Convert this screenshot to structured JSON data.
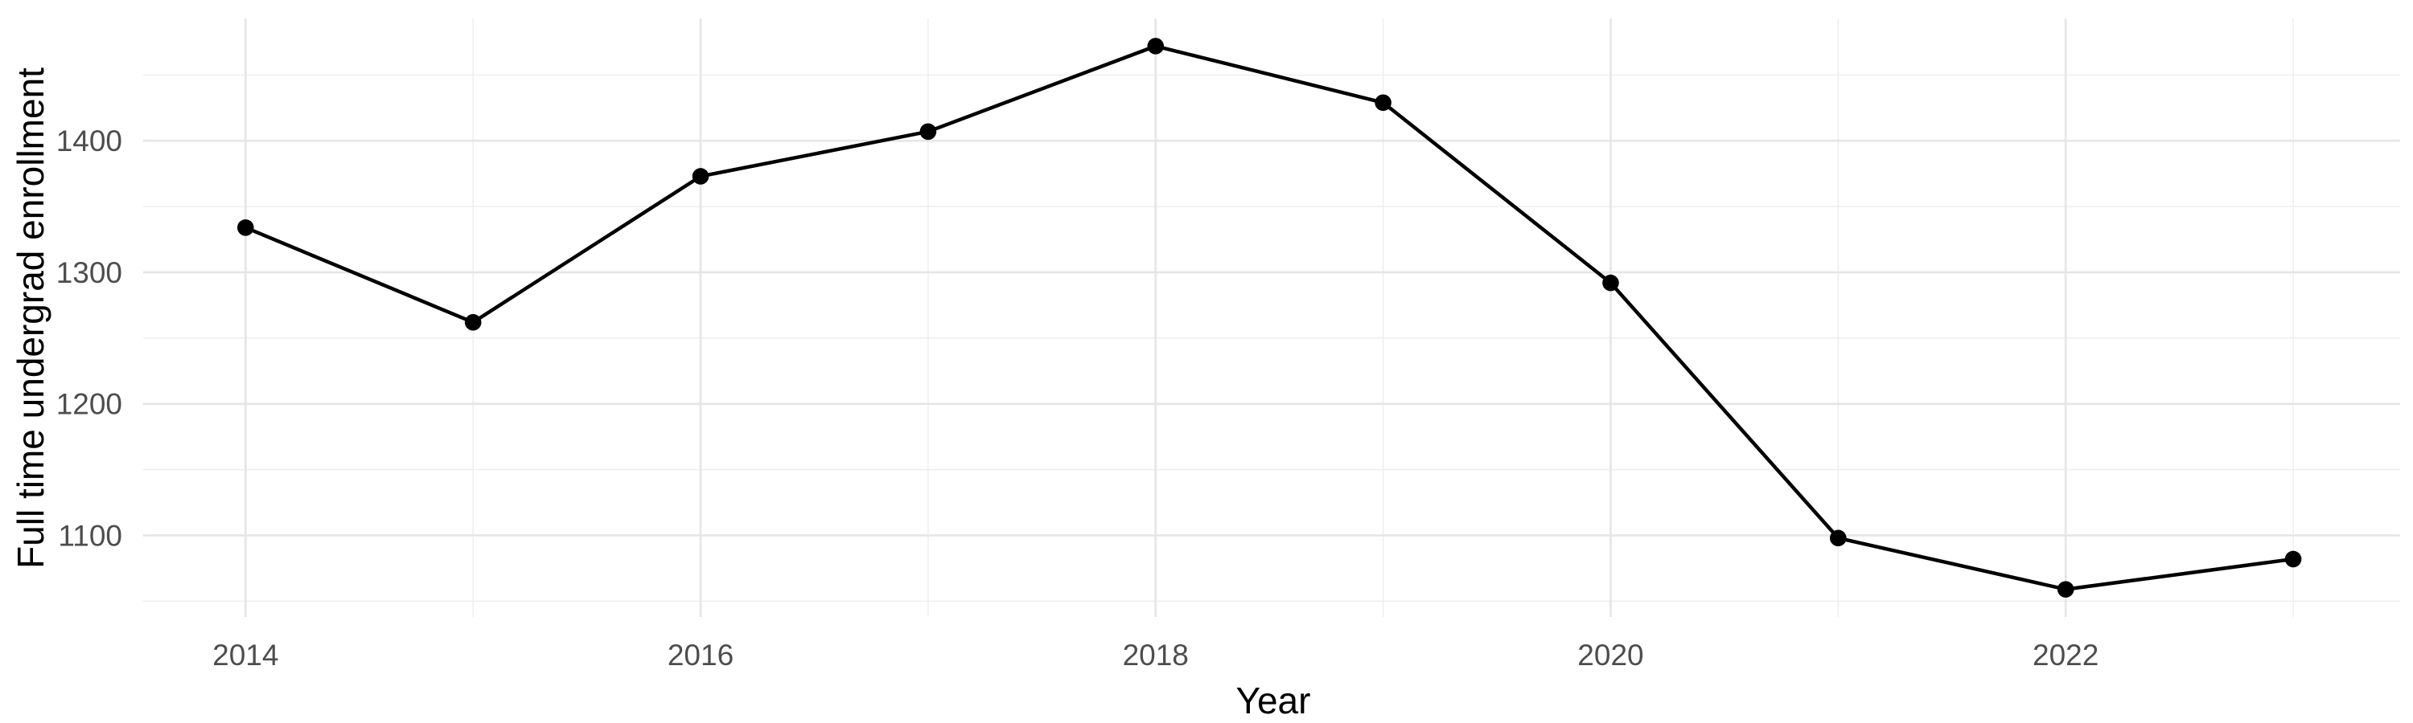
{
  "chart_data": {
    "type": "line",
    "title": "",
    "xlabel": "Year",
    "ylabel": "Full time undergrad enrollment",
    "x": [
      2014,
      2015,
      2016,
      2017,
      2018,
      2019,
      2020,
      2021,
      2022,
      2023
    ],
    "values": [
      1334,
      1262,
      1373,
      1407,
      1472,
      1429,
      1292,
      1098,
      1059,
      1082
    ],
    "x_major_ticks": [
      2014,
      2016,
      2018,
      2020,
      2022
    ],
    "x_major_tick_labels": [
      "2014",
      "2016",
      "2018",
      "2020",
      "2022"
    ],
    "x_minor_ticks": [
      2015,
      2017,
      2019,
      2021,
      2023
    ],
    "y_major_ticks": [
      1100,
      1200,
      1300,
      1400
    ],
    "y_major_tick_labels": [
      "1100",
      "1200",
      "1300",
      "1400"
    ],
    "y_minor_ticks": [
      1050,
      1150,
      1250,
      1350,
      1450
    ],
    "xlim": [
      2013.55,
      2023.47
    ],
    "ylim": [
      1038,
      1493
    ],
    "grid": true,
    "legend": false,
    "colors": {
      "background": "#FFFFFF",
      "line": "#000000",
      "point": "#000000",
      "grid_major": "#E6E6E6",
      "grid_minor": "#EDEDED",
      "axis_text": "#4D4D4D",
      "axis_title": "#000000"
    }
  }
}
